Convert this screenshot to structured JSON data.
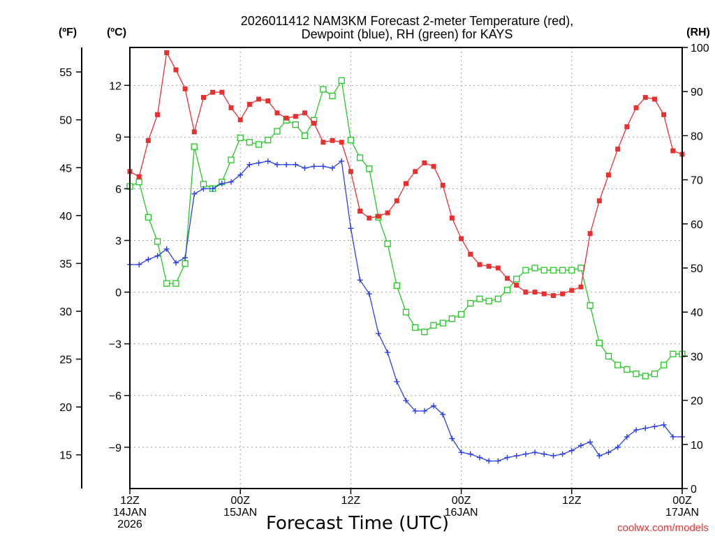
{
  "chart_data": {
    "type": "line",
    "title_line1": "2026011412 NAM3KM Forecast 2-meter Temperature (red),",
    "title_line2": "Dewpoint (blue), RH (green) for KAYS",
    "xlabel": "Forecast Time (UTC)",
    "credit": "coolwx.com/models",
    "unit_f": "(ºF)",
    "unit_c": "(ºC)",
    "unit_rh": "(RH)",
    "colors": {
      "temperature": "#e83030",
      "dewpoint": "#2a3ee8",
      "rh": "#22c822"
    },
    "xlim": [
      0,
      60
    ],
    "c_lim": [
      -11.4,
      14.2
    ],
    "rh_lim": [
      0,
      100
    ],
    "x_ticks": [
      {
        "x": 0,
        "line1": "12Z",
        "line2": "14JAN",
        "line3": "2026"
      },
      {
        "x": 12,
        "line1": "00Z",
        "line2": "15JAN",
        "line3": ""
      },
      {
        "x": 24,
        "line1": "12Z",
        "line2": "",
        "line3": ""
      },
      {
        "x": 36,
        "line1": "00Z",
        "line2": "16JAN",
        "line3": ""
      },
      {
        "x": 48,
        "line1": "12Z",
        "line2": "",
        "line3": ""
      },
      {
        "x": 60,
        "line1": "00Z",
        "line2": "17JAN",
        "line3": ""
      }
    ],
    "c_ticks": [
      {
        "value": -9,
        "label": "−9"
      },
      {
        "value": -6,
        "label": "−6"
      },
      {
        "value": -3,
        "label": "−3"
      },
      {
        "value": 0,
        "label": "0"
      },
      {
        "value": 3,
        "label": "3"
      },
      {
        "value": 6,
        "label": "6"
      },
      {
        "value": 9,
        "label": "9"
      },
      {
        "value": 12,
        "label": "12"
      }
    ],
    "f_ticks": [
      15,
      20,
      25,
      30,
      35,
      40,
      45,
      50,
      55
    ],
    "rh_ticks": [
      0,
      10,
      20,
      30,
      40,
      50,
      60,
      70,
      80,
      90,
      100
    ],
    "series": [
      {
        "name": "Temperature (red)",
        "key": "temperature",
        "unit": "C",
        "marker": "filled-square",
        "values": [
          7.0,
          6.7,
          8.8,
          10.3,
          13.9,
          12.9,
          11.8,
          9.3,
          11.3,
          11.6,
          11.6,
          10.7,
          10.0,
          10.9,
          11.2,
          11.1,
          10.4,
          10.1,
          10.2,
          10.4,
          9.8,
          8.7,
          8.8,
          8.7,
          7.0,
          4.7,
          4.3,
          4.4,
          4.6,
          5.3,
          6.3,
          7.0,
          7.5,
          7.3,
          6.2,
          4.3,
          3.1,
          2.2,
          1.6,
          1.5,
          1.4,
          0.8,
          0.4,
          0.0,
          0.0,
          -0.1,
          -0.2,
          -0.1,
          0.1,
          0.3,
          3.4,
          5.3,
          6.8,
          8.3,
          9.6,
          10.7,
          11.3,
          11.2,
          10.3,
          8.2,
          8.0
        ]
      },
      {
        "name": "Dewpoint (blue)",
        "key": "dewpoint",
        "unit": "C",
        "marker": "plus",
        "values": [
          1.6,
          1.6,
          1.9,
          2.1,
          2.5,
          1.7,
          2.0,
          5.7,
          6.0,
          6.0,
          6.3,
          6.4,
          6.8,
          7.4,
          7.5,
          7.6,
          7.4,
          7.4,
          7.4,
          7.2,
          7.3,
          7.3,
          7.2,
          7.6,
          3.7,
          0.7,
          -0.1,
          -2.4,
          -3.5,
          -5.2,
          -6.3,
          -6.9,
          -6.9,
          -6.6,
          -7.1,
          -8.5,
          -9.3,
          -9.4,
          -9.6,
          -9.8,
          -9.8,
          -9.6,
          -9.5,
          -9.4,
          -9.3,
          -9.4,
          -9.5,
          -9.4,
          -9.2,
          -8.9,
          -8.7,
          -9.5,
          -9.3,
          -9.0,
          -8.4,
          -8.0,
          -7.9,
          -7.8,
          -7.7,
          -8.4,
          -8.4
        ]
      },
      {
        "name": "RH (green)",
        "key": "rh",
        "unit": "%",
        "marker": "open-square",
        "values": [
          68.5,
          69.5,
          61.5,
          56,
          46.5,
          46.5,
          51,
          77.5,
          69,
          68,
          69.5,
          74.5,
          79.5,
          78.5,
          78,
          79,
          81,
          83.5,
          82.5,
          80,
          83.5,
          90.5,
          89,
          92.5,
          79,
          75,
          72.5,
          61.5,
          55.5,
          46,
          40,
          36.5,
          35.5,
          37,
          37.5,
          38.5,
          39.5,
          42,
          43,
          42.5,
          43,
          45,
          47.5,
          49.5,
          50,
          49.5,
          49.5,
          49.5,
          49.5,
          50,
          41.5,
          33,
          30,
          28,
          27,
          26,
          25.5,
          26,
          28,
          30.5,
          30.5
        ]
      }
    ]
  }
}
